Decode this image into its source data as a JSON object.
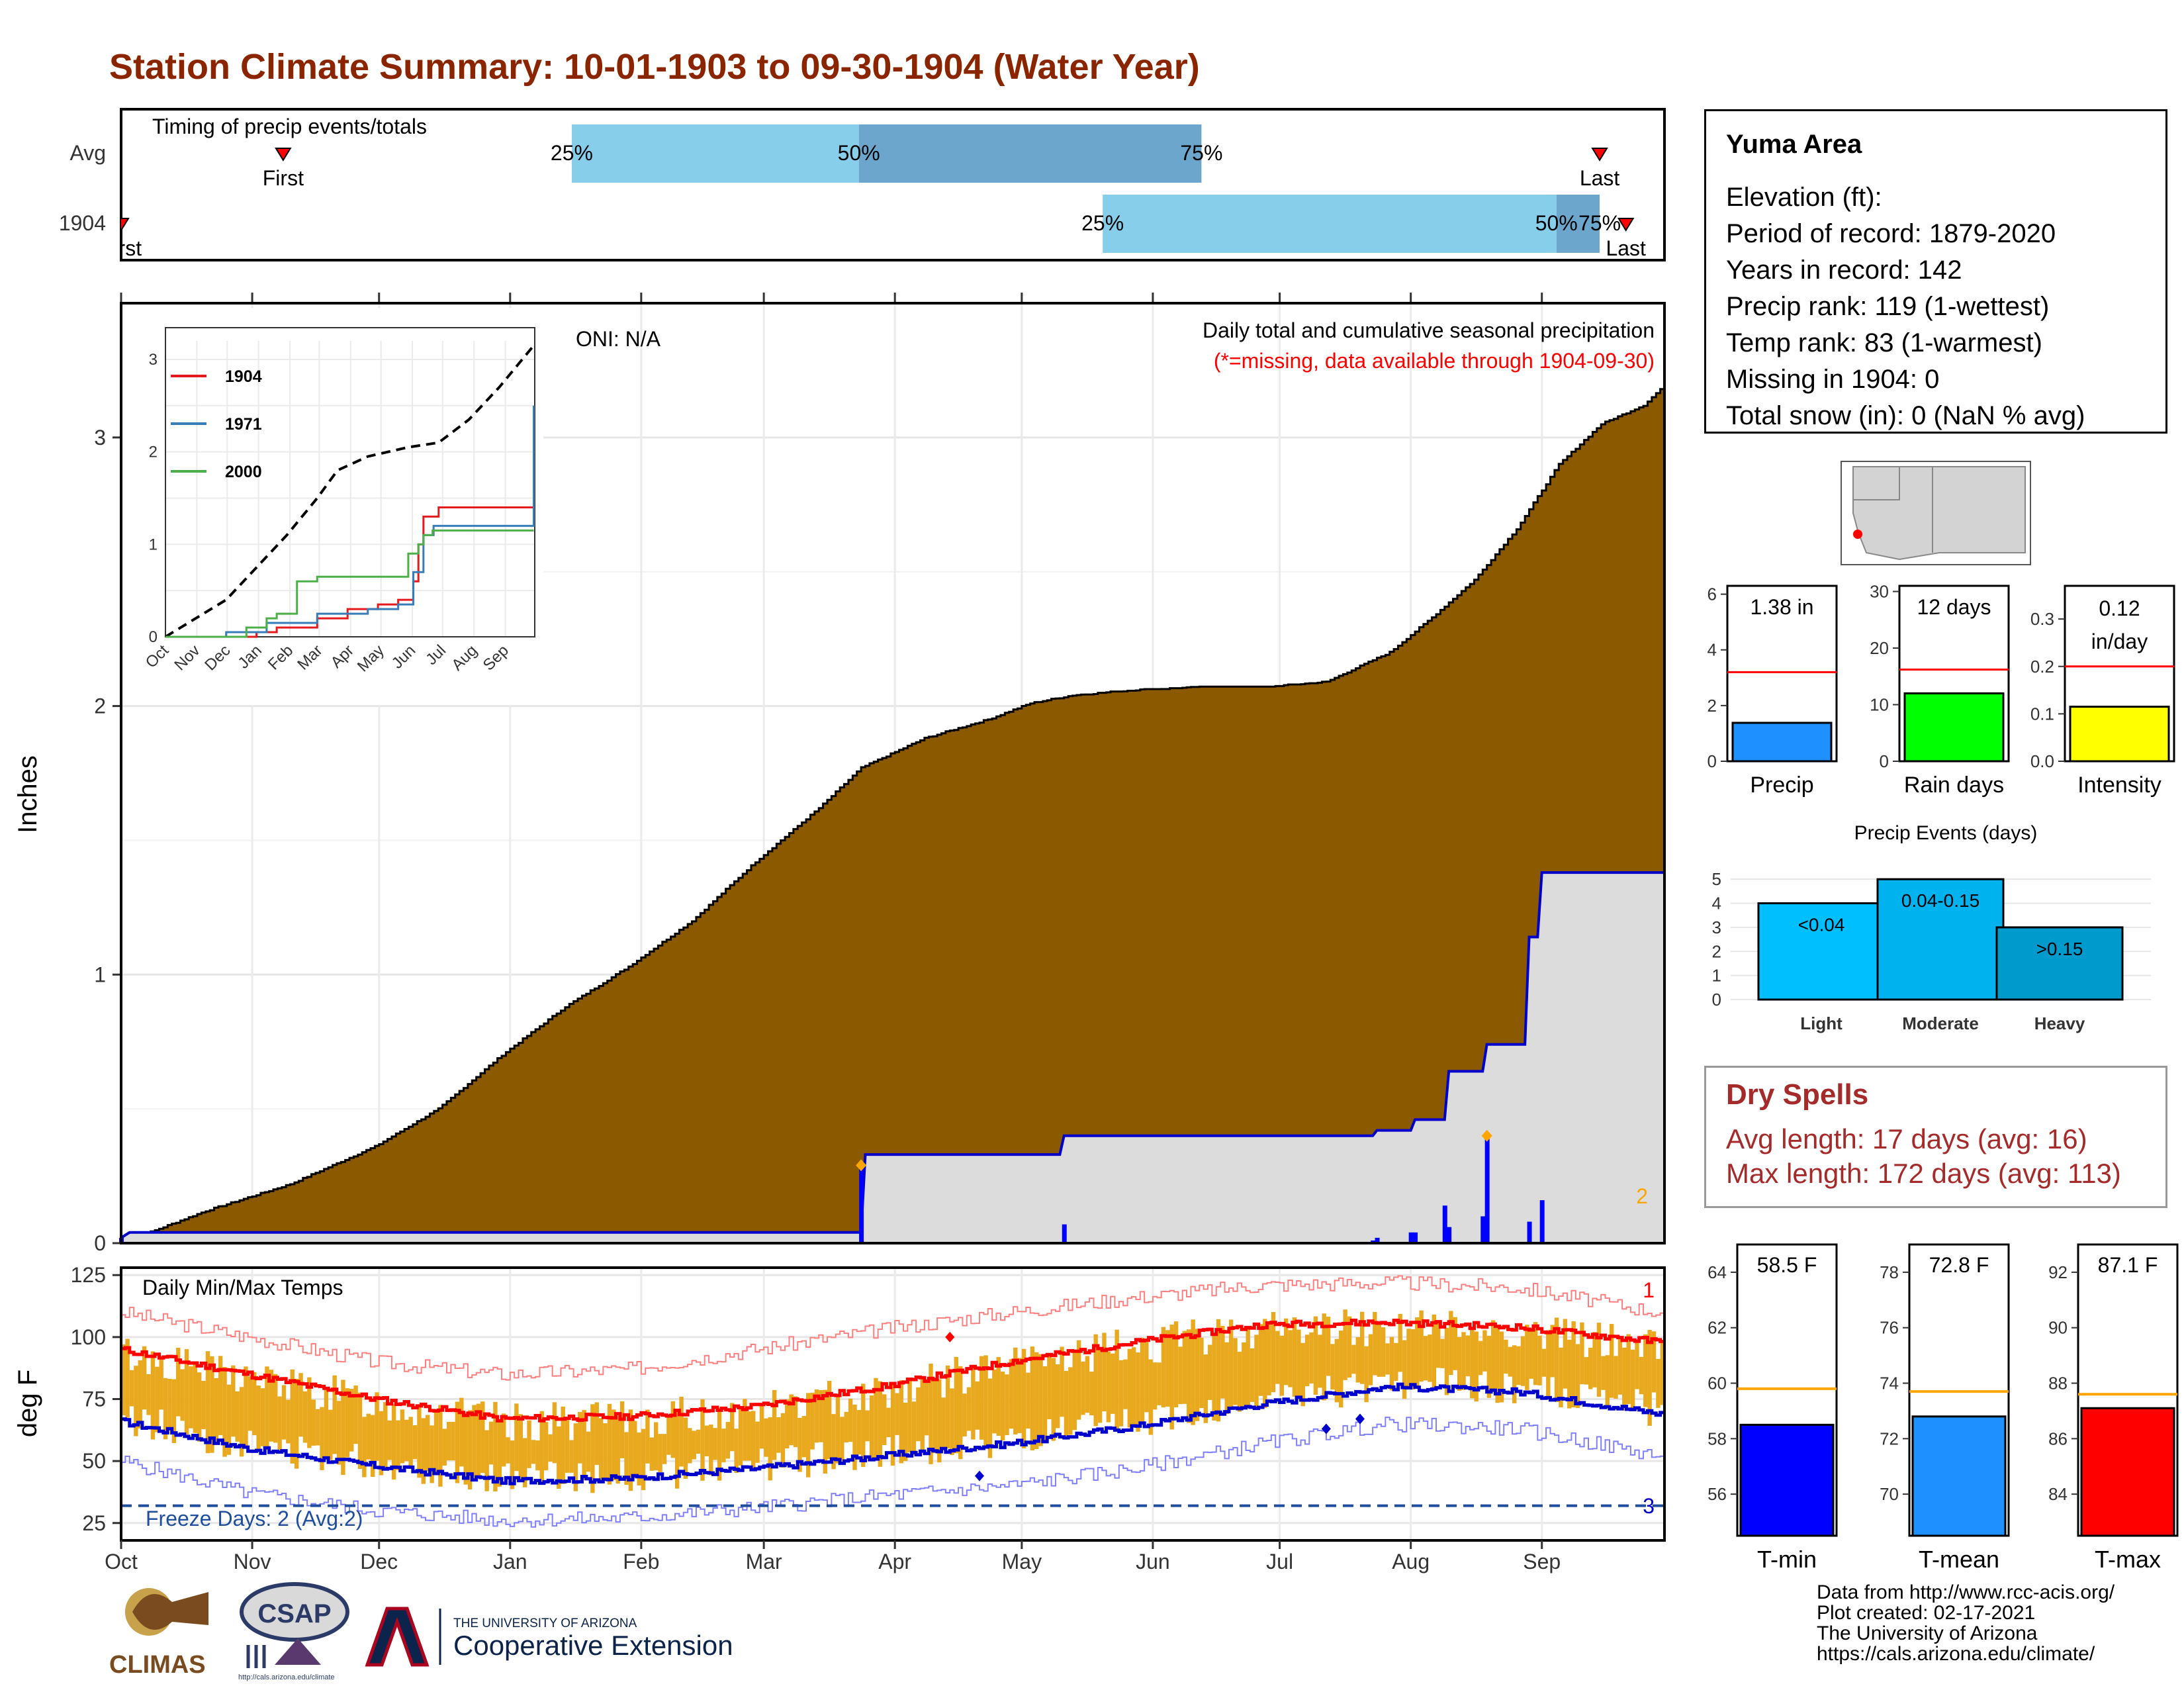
{
  "title": "Station Climate Summary: 10-01-1903 to 09-30-1904 (Water Year)",
  "timing": {
    "label": "Timing of precip events/totals",
    "rows": [
      {
        "label": "Avg",
        "first_label": "First",
        "last_label": "Last",
        "first": 0.105,
        "q25": 0.292,
        "q50": 0.478,
        "q75": 0.7,
        "last": 0.958
      },
      {
        "label": "1904",
        "first_label": "First",
        "last_label": "Last",
        "first": 0.0,
        "q25": 0.636,
        "q50": 0.93,
        "q75": 0.958,
        "last": 0.975
      }
    ],
    "quartile_labels": [
      "25%",
      "50%",
      "75%"
    ],
    "colors": {
      "light": "#87CEEB",
      "dark": "#6CA6CD",
      "marker": "#FF0000"
    }
  },
  "main_chart": {
    "ylabel": "Inches",
    "note1": "Daily total and cumulative seasonal precipitation",
    "note2": "(*=missing, data available through 1904-09-30)",
    "oni": "ONI: N/A",
    "corner_count": "2",
    "ylim": [
      0,
      3.5
    ],
    "y_ticks": [
      "0",
      "1",
      "2",
      "3"
    ],
    "month_labels": [
      "Oct",
      "Nov",
      "Dec",
      "Jan",
      "Feb",
      "Mar",
      "Apr",
      "May",
      "Jun",
      "Jul",
      "Aug",
      "Sep"
    ],
    "colors": {
      "avg_fill": "#8B5A00",
      "year_fill": "#DCDCDC",
      "year_line": "#0000CD",
      "bars": "#0000FF",
      "marker": "#FFA500"
    }
  },
  "inset": {
    "legend": [
      "1904",
      "1971",
      "2000"
    ],
    "legend_colors": [
      "#E41A1C",
      "#377EB8",
      "#4DAF4A"
    ],
    "y_ticks": [
      "0",
      "1",
      "2",
      "3"
    ],
    "x_ticks": [
      "Oct",
      "Nov",
      "Dec",
      "Jan",
      "Feb",
      "Mar",
      "Apr",
      "May",
      "Jun",
      "Jul",
      "Aug",
      "Sep"
    ]
  },
  "temp_chart": {
    "ylabel": "deg F",
    "label": "Daily Min/Max Temps",
    "freeze": "Freeze Days: 2 (Avg:2)",
    "top_count": "1",
    "bottom_count": "3",
    "ylim": [
      18,
      128
    ],
    "y_ticks": [
      "25",
      "50",
      "75",
      "100",
      "125"
    ],
    "freeze_line": 32,
    "colors": {
      "bars": "#E8A91E",
      "max_avg": "#FF0000",
      "min_avg": "#0000CD",
      "max_rec": "#FF7F7F",
      "min_rec": "#7F7FFF"
    }
  },
  "info": {
    "location": "Yuma Area",
    "lines": [
      "Elevation (ft):",
      "Period of record: 1879-2020",
      "Years in record: 142",
      "Precip rank: 119 (1-wettest)",
      "Temp rank: 83 (1-warmest)",
      "Missing in 1904: 0",
      "Total snow (in): 0 (NaN % avg)"
    ]
  },
  "mini_bars": [
    {
      "label": "Precip",
      "value_text": "1.38 in",
      "value": 1.38,
      "avg": 3.2,
      "ymax": 6.3,
      "ticks": [
        "0",
        "2",
        "4",
        "6"
      ],
      "tick_vals": [
        0,
        2,
        4,
        6
      ],
      "color": "#1E90FF"
    },
    {
      "label": "Rain days",
      "value_text": "12 days",
      "value": 12,
      "avg": 16.2,
      "ymax": 31,
      "ticks": [
        "0",
        "10",
        "20",
        "30"
      ],
      "tick_vals": [
        0,
        10,
        20,
        30
      ],
      "color": "#00FF00"
    },
    {
      "label": "Intensity",
      "value_text": "0.12\nin/day",
      "value": 0.115,
      "avg": 0.2,
      "ymax": 0.37,
      "ticks": [
        "0.0",
        "0.1",
        "0.2",
        "0.3"
      ],
      "tick_vals": [
        0,
        0.1,
        0.2,
        0.3
      ],
      "color": "#FFFF00"
    }
  ],
  "events": {
    "title": "Precip Events (days)",
    "categories": [
      "Light",
      "Moderate",
      "Heavy"
    ],
    "bar_labels": [
      "<0.04",
      "0.04-0.15",
      ">0.15"
    ],
    "values": [
      4,
      5,
      3
    ],
    "y_ticks": [
      "0",
      "1",
      "2",
      "3",
      "4",
      "5"
    ],
    "colors": [
      "#00BFFF",
      "#00B2EE",
      "#009ACD"
    ]
  },
  "dry_spells": {
    "title": "Dry Spells",
    "lines": [
      "Avg length: 17 days (avg: 16)",
      "Max length: 172 days (avg: 113)"
    ]
  },
  "temp_bars": [
    {
      "label": "T-min",
      "value_text": "58.5 F",
      "value": 58.5,
      "avg": 59.8,
      "ylim": [
        54.5,
        65
      ],
      "ticks": [
        "56",
        "58",
        "60",
        "62",
        "64"
      ],
      "tick_vals": [
        56,
        58,
        60,
        62,
        64
      ],
      "color": "#0000FF"
    },
    {
      "label": "T-mean",
      "value_text": "72.8 F",
      "value": 72.8,
      "avg": 73.7,
      "ylim": [
        68.5,
        79
      ],
      "ticks": [
        "70",
        "72",
        "74",
        "76",
        "78"
      ],
      "tick_vals": [
        70,
        72,
        74,
        76,
        78
      ],
      "color": "#1E90FF"
    },
    {
      "label": "T-max",
      "value_text": "87.1 F",
      "value": 87.1,
      "avg": 87.6,
      "ylim": [
        82.5,
        93
      ],
      "ticks": [
        "84",
        "86",
        "88",
        "90",
        "92"
      ],
      "tick_vals": [
        84,
        86,
        88,
        90,
        92
      ],
      "color": "#FF0000"
    }
  ],
  "credits": [
    "Data from http://www.rcc-acis.org/",
    "Plot created: 02-17-2021",
    "The University of Arizona",
    "https://cals.arizona.edu/climate/"
  ],
  "logos": {
    "climas": "CLIMAS",
    "csap": "CSAP",
    "csap_url": "http://cals.arizona.edu/climate",
    "ua_small": "THE UNIVERSITY OF ARIZONA",
    "ua_big": "Cooperative Extension"
  },
  "chart_data": [
    {
      "type": "area",
      "title": "Daily total and cumulative seasonal precipitation",
      "ylabel": "Inches",
      "ylim": [
        0,
        3.5
      ],
      "x_unit": "day of water year (Oct 1 = 0)",
      "series": [
        {
          "name": "avg",
          "x": [
            0,
            20,
            40,
            60,
            75,
            90,
            105,
            120,
            135,
            150,
            165,
            175,
            190,
            205,
            215,
            225,
            240,
            255,
            270,
            285,
            300,
            310,
            320,
            330,
            340,
            350,
            360,
            364
          ],
          "y": [
            0,
            0.12,
            0.22,
            0.36,
            0.5,
            0.7,
            0.88,
            1.03,
            1.2,
            1.42,
            1.62,
            1.77,
            1.88,
            1.95,
            2.01,
            2.04,
            2.06,
            2.07,
            2.07,
            2.09,
            2.2,
            2.33,
            2.47,
            2.66,
            2.9,
            3.05,
            3.12,
            3.18
          ]
        },
        {
          "name": "1904",
          "x": [
            0,
            2,
            175,
            176,
            222,
            223,
            296,
            297,
            305,
            306,
            313,
            314,
            322,
            323,
            332,
            333,
            335,
            336,
            364
          ],
          "y": [
            0.02,
            0.04,
            0.04,
            0.33,
            0.33,
            0.4,
            0.4,
            0.42,
            0.42,
            0.46,
            0.46,
            0.64,
            0.64,
            0.74,
            0.74,
            1.14,
            1.14,
            1.38,
            1.38
          ]
        },
        {
          "name": "daily 1904",
          "x": [
            0,
            175,
            223,
            296,
            297,
            305,
            306,
            313,
            314,
            322,
            323,
            333,
            336
          ],
          "y": [
            0.02,
            0.29,
            0.07,
            0.01,
            0.02,
            0.04,
            0.04,
            0.14,
            0.06,
            0.1,
            0.4,
            0.08,
            0.16
          ]
        }
      ]
    },
    {
      "type": "line",
      "title": "inset cumulative precip",
      "ylim": [
        0,
        3.2
      ],
      "series": [
        {
          "name": "avg",
          "x": [
            0,
            30,
            60,
            90,
            120,
            150,
            170,
            200,
            240,
            270,
            300,
            330,
            364
          ],
          "y": [
            0,
            0.2,
            0.4,
            0.75,
            1.1,
            1.5,
            1.8,
            1.95,
            2.05,
            2.1,
            2.35,
            2.7,
            3.15
          ]
        },
        {
          "name": "1904",
          "x": [
            0,
            90,
            110,
            150,
            180,
            210,
            230,
            245,
            250,
            255,
            270,
            280,
            364
          ],
          "y": [
            0,
            0.05,
            0.1,
            0.2,
            0.3,
            0.35,
            0.4,
            0.6,
            1.0,
            1.3,
            1.4,
            1.4,
            1.4
          ]
        },
        {
          "name": "1971",
          "x": [
            0,
            60,
            100,
            150,
            200,
            230,
            245,
            255,
            265,
            270,
            355,
            364
          ],
          "y": [
            0,
            0.05,
            0.15,
            0.25,
            0.3,
            0.35,
            0.7,
            1.1,
            1.2,
            1.2,
            1.2,
            2.5
          ]
        },
        {
          "name": "2000",
          "x": [
            0,
            80,
            100,
            110,
            130,
            150,
            220,
            240,
            250,
            255,
            264,
            364
          ],
          "y": [
            0,
            0.1,
            0.2,
            0.25,
            0.6,
            0.65,
            0.65,
            0.9,
            1.0,
            1.1,
            1.15,
            1.15
          ]
        }
      ]
    },
    {
      "type": "bar",
      "title": "Daily Min/Max Temps",
      "ylabel": "deg F",
      "ylim": [
        18,
        128
      ],
      "series": [
        {
          "name": "avg max",
          "x": [
            0,
            30,
            60,
            90,
            120,
            150,
            180,
            210,
            240,
            270,
            300,
            330,
            364
          ],
          "y": [
            95,
            85,
            75,
            67,
            68,
            72,
            80,
            90,
            98,
            105,
            106,
            104,
            98
          ]
        },
        {
          "name": "avg min",
          "x": [
            0,
            30,
            60,
            90,
            120,
            150,
            180,
            210,
            240,
            270,
            300,
            330,
            364
          ],
          "y": [
            66,
            55,
            48,
            42,
            43,
            47,
            52,
            57,
            64,
            73,
            80,
            78,
            69
          ]
        },
        {
          "name": "record max",
          "x": [
            0,
            30,
            60,
            90,
            120,
            150,
            180,
            210,
            240,
            270,
            300,
            330,
            364
          ],
          "y": [
            110,
            100,
            90,
            85,
            87,
            95,
            103,
            110,
            116,
            121,
            122,
            120,
            110
          ]
        },
        {
          "name": "record min",
          "x": [
            0,
            30,
            60,
            90,
            120,
            150,
            180,
            210,
            240,
            270,
            300,
            330,
            364
          ],
          "y": [
            50,
            37,
            30,
            26,
            27,
            31,
            36,
            40,
            47,
            57,
            65,
            63,
            52
          ]
        }
      ]
    },
    {
      "type": "bar",
      "title": "Precip Events (days)",
      "categories": [
        "Light",
        "Moderate",
        "Heavy"
      ],
      "values": [
        4,
        5,
        3
      ],
      "ylim": [
        0,
        5.5
      ]
    }
  ]
}
